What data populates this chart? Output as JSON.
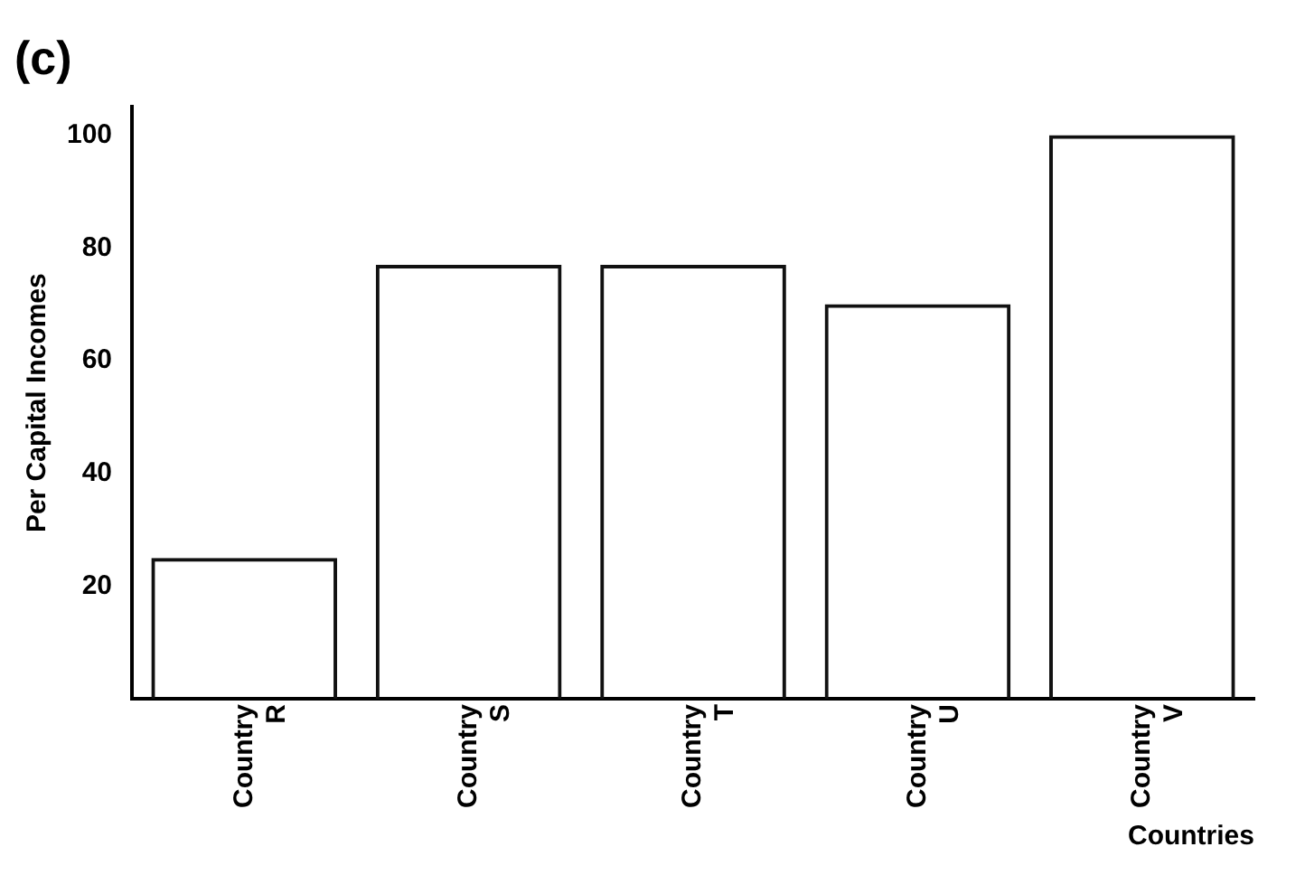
{
  "chart_data": {
    "type": "bar",
    "title": "(c)",
    "xlabel": "Countries",
    "ylabel": "Per Capital Incomes",
    "categories": [
      "Country R",
      "Country S",
      "Country T",
      "Country U",
      "Country V"
    ],
    "values": [
      25,
      77,
      77,
      70,
      100
    ],
    "color": "#111111",
    "ylim": [
      0,
      105
    ],
    "yticks": [
      20,
      40,
      60,
      80,
      100
    ],
    "grid": false,
    "legend": false
  }
}
